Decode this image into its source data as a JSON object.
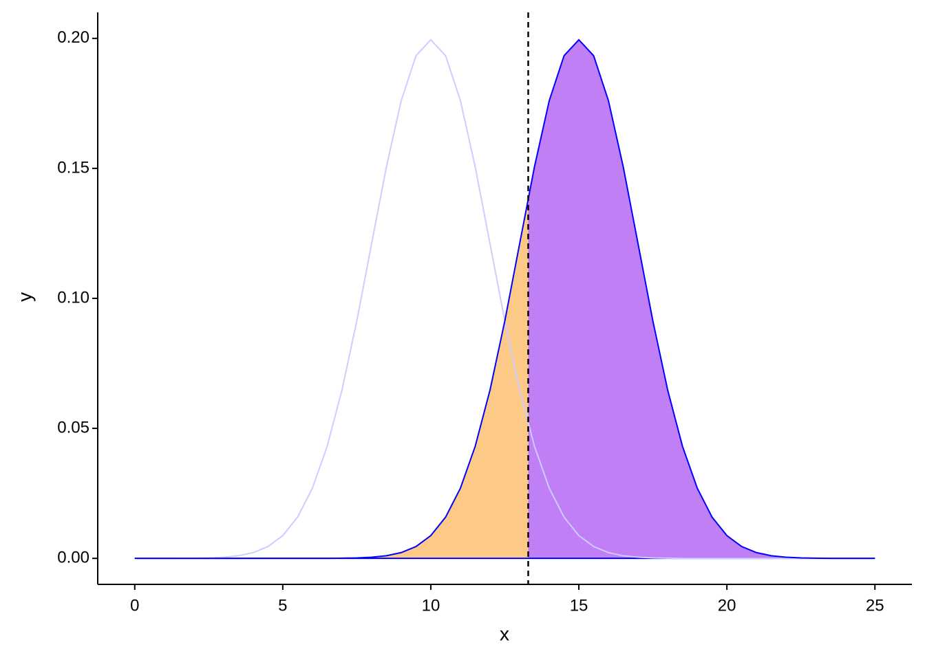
{
  "chart_data": {
    "type": "density-shaded",
    "x_label": "x",
    "y_label": "y",
    "x": [
      0,
      0.5,
      1,
      1.5,
      2,
      2.5,
      3,
      3.5,
      4,
      4.5,
      5,
      5.5,
      6,
      6.5,
      7,
      7.5,
      8,
      8.5,
      9,
      9.5,
      10,
      10.5,
      11,
      11.5,
      12,
      12.5,
      13,
      13.5,
      14,
      14.5,
      15,
      15.5,
      16,
      16.5,
      17,
      17.5,
      18,
      18.5,
      19,
      19.5,
      20,
      20.5,
      21,
      21.5,
      22,
      22.5,
      23,
      23.5,
      24,
      24.5,
      25
    ],
    "series": [
      {
        "color": "#ccccff",
        "values": [
          0,
          0,
          1e-05,
          2e-05,
          7e-05,
          0.00018,
          0.00044,
          0.00101,
          0.00222,
          0.00455,
          0.00876,
          0.01587,
          0.027,
          0.04314,
          0.06476,
          0.09132,
          0.12099,
          0.15057,
          0.17603,
          0.19333,
          0.19947,
          0.19333,
          0.17603,
          0.15057,
          0.12099,
          0.09132,
          0.06476,
          0.04314,
          0.027,
          0.01587,
          0.00876,
          0.00455,
          0.00222,
          0.00101,
          0.00044,
          0.00018,
          7e-05,
          2e-05,
          1e-05,
          0,
          0,
          0,
          0,
          0,
          0,
          0,
          0,
          0,
          0,
          0,
          0
        ]
      },
      {
        "color": "#0000ff",
        "values": [
          0,
          0,
          0,
          0,
          0,
          0,
          0,
          0,
          0,
          0,
          0,
          0,
          1e-05,
          2e-05,
          7e-05,
          0.00018,
          0.00044,
          0.00101,
          0.00222,
          0.00455,
          0.00876,
          0.01587,
          0.027,
          0.04314,
          0.06476,
          0.09132,
          0.12099,
          0.15057,
          0.17603,
          0.19333,
          0.19947,
          0.19333,
          0.17603,
          0.15057,
          0.12099,
          0.09132,
          0.06476,
          0.04314,
          0.027,
          0.01587,
          0.00876,
          0.00455,
          0.00222,
          0.00101,
          0.00044,
          0.00018,
          7e-05,
          2e-05,
          1e-05,
          0,
          0
        ]
      }
    ],
    "threshold": 13.29,
    "threshold_color": "#000000",
    "shade_colors": [
      "#fdc986",
      "#c17ff5"
    ],
    "xlim": [
      -1.25,
      26.25
    ],
    "xticks": [
      0,
      5,
      10,
      15,
      20,
      25
    ],
    "ylim": [
      -0.01,
      0.21
    ],
    "yticks": [
      {
        "value": 0,
        "label": "0.00"
      },
      0.05,
      {
        "value": 0.1,
        "label": "0.10"
      },
      0.15,
      {
        "value": 0.2,
        "label": "0.20"
      }
    ],
    "grid": false
  }
}
